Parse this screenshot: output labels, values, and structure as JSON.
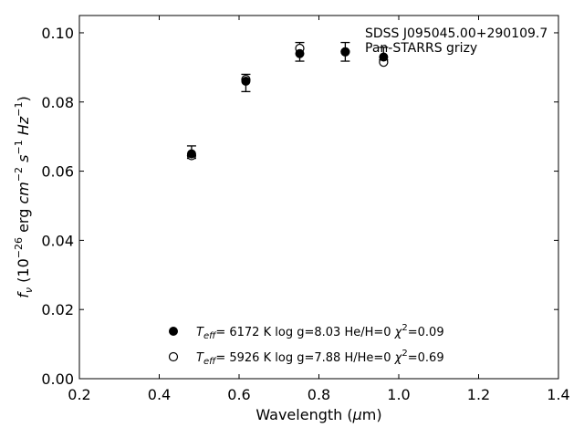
{
  "chart_data": {
    "type": "scatter",
    "title": "",
    "xlabel": "Wavelength ($\\mu$m)",
    "xlabel_display": {
      "prefix": "Wavelength (",
      "symbol": "μ",
      "suffix": "m)"
    },
    "ylabel": "$f_{\\nu}$ ($10^{-26}$ erg $cm^{-2}$ $s^{-1}$ $Hz^{-1}$)",
    "xlim": [
      0.2,
      1.4
    ],
    "ylim": [
      0.0,
      0.105
    ],
    "xticks": [
      0.2,
      0.4,
      0.6,
      0.8,
      1.0,
      1.2,
      1.4
    ],
    "xtick_labels": [
      "0.2",
      "0.4",
      "0.6",
      "0.8",
      "1.0",
      "1.2",
      "1.4"
    ],
    "yticks": [
      0.0,
      0.02,
      0.04,
      0.06,
      0.08,
      0.1
    ],
    "ytick_labels": [
      "0.00",
      "0.02",
      "0.04",
      "0.06",
      "0.08",
      "0.10"
    ],
    "grid": false,
    "annotation": {
      "line1": "SDSS J095045.00+290109.7",
      "line2": "Pan-STARRS grizy"
    },
    "observed": {
      "x": [
        0.481,
        0.617,
        0.752,
        0.866,
        0.962
      ],
      "y": [
        0.0655,
        0.0855,
        0.0945,
        0.0945,
        0.094
      ],
      "yerr": [
        0.0018,
        0.0025,
        0.0027,
        0.0027,
        0.0018
      ]
    },
    "series": [
      {
        "marker": "filled-circle",
        "label": {
          "teff_value": "6172 K",
          "logg": "log g=8.03",
          "comp": "He/H=0",
          "chi2": "=0.09"
        },
        "x": [
          0.481,
          0.617,
          0.752,
          0.866,
          0.962
        ],
        "y": [
          0.065,
          0.086,
          0.094,
          0.0945,
          0.093
        ]
      },
      {
        "marker": "open-circle",
        "label": {
          "teff_value": "5926 K",
          "logg": "log g=7.88",
          "comp": "H/He=0",
          "chi2": "=0.69"
        },
        "x": [
          0.481,
          0.617,
          0.752,
          0.866,
          0.962
        ],
        "y": [
          0.0645,
          0.0865,
          0.0955,
          0.0945,
          0.0915
        ]
      }
    ],
    "legend_position": "lower-center",
    "colors": {
      "marker": "#000000",
      "axes": "#000000"
    }
  }
}
